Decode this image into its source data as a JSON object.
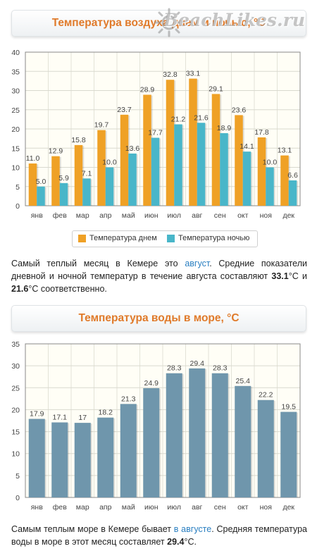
{
  "logo": {
    "text": "BeachLikes.ru"
  },
  "chart1": {
    "title": "Температура воздуха днем и ночью, °С",
    "legend": [
      "Температура днем",
      "Температура ночью"
    ]
  },
  "para1": {
    "t1": "Самый теплый месяц в Кемере это ",
    "link": "август",
    "t2": ". Средние показатели дневной и ночной температур в течение августа составляют ",
    "v1": "33.1",
    "t3": "°С и ",
    "v2": "21.6",
    "t4": "°С соответственно."
  },
  "chart2": {
    "title": "Температура воды в море, °С"
  },
  "para2": {
    "t1": "Самым теплым море в Кемере бывает ",
    "link": "в августе",
    "t2": ". Средняя температура воды в море в этот месяц составляет ",
    "v1": "29.4",
    "t3": "°С."
  },
  "chart_data": [
    {
      "type": "bar",
      "title": "Температура воздуха днем и ночью, °С",
      "categories": [
        "янв",
        "фев",
        "мар",
        "апр",
        "май",
        "июн",
        "июл",
        "авг",
        "сен",
        "окт",
        "ноя",
        "дек"
      ],
      "series": [
        {
          "name": "Температура днем",
          "color": "#efa126",
          "labels": [
            "11.0",
            "12.9",
            "15.8",
            "19.7",
            "23.7",
            "28.9",
            "32.8",
            "33.1",
            "29.1",
            "23.6",
            "17.8",
            "13.1"
          ],
          "values": [
            11.0,
            12.9,
            15.8,
            19.7,
            23.7,
            28.9,
            32.8,
            33.1,
            29.1,
            23.6,
            17.8,
            13.1
          ]
        },
        {
          "name": "Температура ночью",
          "color": "#49b6c9",
          "labels": [
            "5.0",
            "5.9",
            "7.1",
            "10.0",
            "13.6",
            "17.7",
            "21.2",
            "21.6",
            "18.9",
            "14.1",
            "10.0",
            "6.6"
          ],
          "values": [
            5.0,
            5.9,
            7.1,
            10.0,
            13.6,
            17.7,
            21.2,
            21.6,
            18.9,
            14.1,
            10.0,
            6.6
          ]
        }
      ],
      "yticks": [
        0,
        5,
        10,
        15,
        20,
        25,
        30,
        35,
        40
      ],
      "ylim": [
        0,
        40
      ],
      "grid": true,
      "legend_position": "bottom"
    },
    {
      "type": "bar",
      "title": "Температура воды в море, °С",
      "categories": [
        "янв",
        "фев",
        "мар",
        "апр",
        "май",
        "июн",
        "июл",
        "авг",
        "сен",
        "окт",
        "ноя",
        "дек"
      ],
      "series": [
        {
          "color": "#6f96ac",
          "labels": [
            "17.9",
            "17.1",
            "17",
            "18.2",
            "21.3",
            "24.9",
            "28.3",
            "29.4",
            "28.3",
            "25.4",
            "22.2",
            "19.5"
          ],
          "values": [
            17.9,
            17.1,
            17,
            18.2,
            21.3,
            24.9,
            28.3,
            29.4,
            28.3,
            25.4,
            22.2,
            19.5
          ]
        }
      ],
      "yticks": [
        0,
        5,
        10,
        15,
        20,
        25,
        30,
        35
      ],
      "ylim": [
        0,
        35
      ],
      "grid": true
    }
  ]
}
